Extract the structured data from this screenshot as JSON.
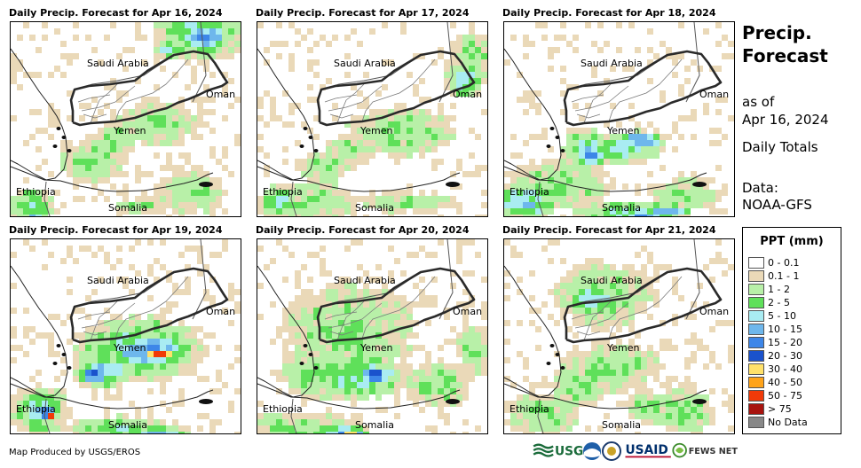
{
  "panels": [
    {
      "title": "Daily Precip. Forecast for Apr 16, 2024"
    },
    {
      "title": "Daily Precip. Forecast for Apr 17, 2024"
    },
    {
      "title": "Daily Precip. Forecast for Apr 18, 2024"
    },
    {
      "title": "Daily Precip. Forecast for Apr 19, 2024"
    },
    {
      "title": "Daily Precip. Forecast for Apr 20, 2024"
    },
    {
      "title": "Daily Precip. Forecast for Apr 21, 2024"
    }
  ],
  "map_labels": {
    "saudi": "Saudi Arabia",
    "oman": "Oman",
    "yemen": "Yemen",
    "ethiopia": "Ethiopia",
    "somalia": "Somalia"
  },
  "sidebar": {
    "title_line1": "Precip.",
    "title_line2": "Forecast",
    "as_of_line1": "as of",
    "as_of_line2": "Apr 16, 2024",
    "totals": "Daily Totals",
    "data_line1": "Data:",
    "data_line2": "NOAA-GFS"
  },
  "legend": {
    "title": "PPT (mm)",
    "items": [
      {
        "label": "0 - 0.1",
        "color": "#ffffff"
      },
      {
        "label": "0.1 - 1",
        "color": "#ead9b8"
      },
      {
        "label": "1 - 2",
        "color": "#b8f0a8"
      },
      {
        "label": "2 - 5",
        "color": "#5fe05a"
      },
      {
        "label": "5 - 10",
        "color": "#a9ecf2"
      },
      {
        "label": "10 - 15",
        "color": "#6eb7ec"
      },
      {
        "label": "15 - 20",
        "color": "#3d86e8"
      },
      {
        "label": "20 - 30",
        "color": "#1a52cc"
      },
      {
        "label": "30 - 40",
        "color": "#ffe16a"
      },
      {
        "label": "40 - 50",
        "color": "#ffa319"
      },
      {
        "label": "50 - 75",
        "color": "#f03a08"
      },
      {
        "label": "> 75",
        "color": "#a8140f"
      },
      {
        "label": "No Data",
        "color": "#888888"
      }
    ]
  },
  "credit": "Map Produced by USGS/EROS",
  "logos": {
    "usgs": "USGS",
    "usaid": "USAID",
    "fews": "FEWS NET"
  },
  "colors": {
    "border": "#2a2a2a",
    "boundary": "#555555"
  }
}
